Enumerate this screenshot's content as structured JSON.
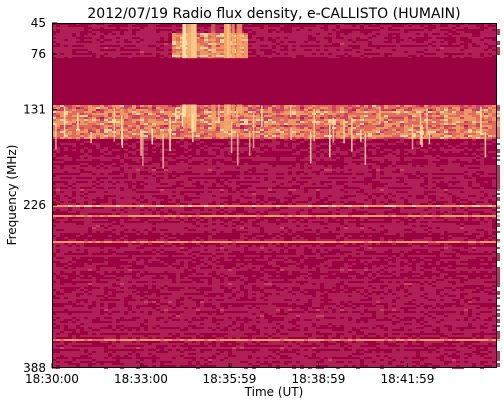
{
  "chart_data": {
    "type": "heatmap",
    "title": "2012/07/19  Radio flux density, e-CALLISTO (HUMAIN)",
    "xlabel": "Time (UT)",
    "ylabel": "Frequency (MHz)",
    "x_ticks": [
      "18:30:00",
      "18:33:00",
      "18:35:59",
      "18:38:59",
      "18:41:59"
    ],
    "y_ticks": [
      "45",
      "76",
      "131",
      "226",
      "388"
    ],
    "y_tick_values": [
      45,
      76,
      131,
      226,
      388
    ],
    "y_range": [
      45,
      388
    ],
    "x_range": [
      "18:30:00",
      "18:45:00"
    ],
    "colormap": [
      "#9b0040",
      "#b3245a",
      "#cf4a66",
      "#e8785f",
      "#f4a968",
      "#fde7a3"
    ],
    "saturated_band_mhz": [
      80,
      126
    ],
    "burst_time_range": [
      "18:34:00",
      "18:36:30"
    ]
  }
}
